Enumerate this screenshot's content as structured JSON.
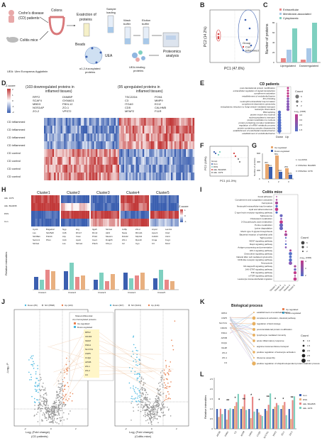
{
  "labels": [
    "A",
    "B",
    "C",
    "D",
    "E",
    "F",
    "G",
    "H",
    "I",
    "J",
    "K",
    "L"
  ],
  "panelA": {
    "crohn": "Crohn's disease",
    "crohn2": "(CD) patients",
    "colitis": "Colitis mice",
    "colons": "Colons",
    "extraction": "Exatrction of",
    "extraction2": "proteins",
    "sample": "Sample",
    "sample2": "loading",
    "wash": "Wash",
    "wash2": "buffer",
    "elution": "Elution",
    "elution2": "buffer",
    "beads": "Beads",
    "uea": "UEA",
    "fuc": "α1,2-fucosylated",
    "fuc2": "proteins",
    "ueabind": "UEA-binding",
    "ueabind2": "proteins",
    "proteomics": "Proteomics",
    "proteomics2": "analysis",
    "ueadef": "UEA: Ulex Europaeus Agglutinin"
  },
  "panelB": {
    "xlabel": "PC1 (47.6%)",
    "ylabel": "PC2 (14.2%)",
    "legend_title": "Group",
    "legend": [
      "Con",
      "Inflammed"
    ],
    "colors": [
      "#d43d3d",
      "#3b5fb0"
    ]
  },
  "panelC": {
    "ylabel": "Number of proteins",
    "legend": [
      "Extracellular",
      "Membrane-associated",
      "Cytoplasmic"
    ],
    "colors": [
      "#e88888",
      "#a8c8e8",
      "#7fd0c0"
    ],
    "categories": [
      "Upregulated",
      "Downregulated"
    ],
    "ticks": [
      "0",
      "20",
      "40",
      "60",
      "80"
    ]
  },
  "panelD": {
    "zscore": "Z-score",
    "zticks": [
      "2",
      "1",
      "0",
      "-1",
      "-2"
    ],
    "left_head": "(103 downregulated proteins in",
    "left_head2": "inflamed tissues)",
    "right_head": "(95 upregulated proteins in",
    "right_head2": "inflamed tissues)",
    "left_genes": [
      "RPF2",
      "DNMBP",
      "SCAF4",
      "OXNAD1",
      "MBD3",
      "FBXL12",
      "NOS1AP",
      "ZO-1",
      "ZO-2",
      "VPS72"
    ],
    "right_genes": [
      "TSC22D4",
      "PON1",
      "C3",
      "MMP9",
      "ITGA9",
      "ECI2",
      "CD5",
      "CALHM5",
      "MFAP2",
      "F11R"
    ],
    "rows": [
      "CD inflammed",
      "CD inflammed",
      "CD inflammed",
      "CD inflammed",
      "CD control",
      "CD control",
      "CD control",
      "CD control"
    ]
  },
  "panelE": {
    "title": "CD patients",
    "terms": [
      "post-translational protein modification",
      "extracellular regulation of signal transduction",
      "complement activation",
      "establishment of endothelial barrier",
      "ZO-2 binding",
      "neutrophil extracellular trap formation",
      "complement-dependent cytotoxicity",
      "endoplasmic reticulum to Golgi vesicle-mediated transport",
      "leukocyte chemotaxis",
      "RNA splicing",
      "protein import into nucleus",
      "nucleocytoplasmic transport",
      "protein localization to nucleus",
      "protein-containing complex localization",
      "regulation of mRNA metabolic process",
      "protein-containing complex disassembly",
      "establishment of endothelial intestinal barrier",
      "establishment of endothelial barrier"
    ],
    "xcats": [
      "Down",
      "Up"
    ],
    "count_title": "Count",
    "counts": [
      "6",
      "4",
      "2"
    ],
    "fdr_title": "-Log₁₀ (FDR)",
    "fdr": [
      "4.0",
      "3.0",
      "2.0",
      "1.5"
    ]
  },
  "panelF": {
    "xlabel": "PC1 (41.3%)",
    "ylabel": "PC2 (18%)",
    "legend_title": "Group",
    "legend": [
      "Con",
      "DSS",
      "Akk. BAA835",
      "Akk. 1079"
    ],
    "colors": [
      "#3b5fb0",
      "#7fd0c0",
      "#d43d3d",
      "#888888"
    ]
  },
  "panelG": {
    "ylabel": "Number of proteins",
    "legend": [
      "Up regulated",
      "Down-regulated"
    ],
    "values": [
      "357",
      "551",
      "253"
    ],
    "values2": [
      "291",
      "162",
      "103"
    ],
    "ticks": [
      "0",
      "200",
      "400",
      "600"
    ],
    "cats": [
      "1",
      "2",
      "3"
    ],
    "notes": [
      "1: Con/DSS",
      "2: DSS/Akk. BAA835",
      "3: DSS/Akk. 1079"
    ]
  },
  "panelH": {
    "clusters": [
      "Cluster1",
      "Cluster2",
      "Cluster3",
      "Cluster4",
      "Cluster5"
    ],
    "rows": [
      "Akk. 1079",
      "Akk. BAA835",
      "DSS",
      "Con"
    ],
    "zscore": "Z-score",
    "zticks": [
      "1",
      "0",
      "-1"
    ],
    "ylabel": "Relative intensities",
    "genes": [
      [
        "Cyct1",
        "B4galnt2",
        "Lss",
        "Slc25a5",
        "Slc38a1",
        "Pdcd4",
        "Serinc1",
        "Pbxn",
        "Slc3a1"
      ],
      [
        "Ngp",
        "Hrg",
        "Cd6",
        "Dhrs7",
        "Lbp",
        "Vcan",
        "Cd4",
        "Apob",
        "Lss",
        "Slc1a1"
      ],
      [
        "Itga5",
        "Slc4a1",
        "Rrm2",
        "Akt3",
        "Ptrk4",
        "Mustn1",
        "Cav1",
        "Dnajb5",
        "Ptkcb",
        "Khnyn"
      ],
      [
        "Cd5p",
        "ZO-2",
        "Naca",
        "Rbm41",
        "Ddx42",
        "Mrpl44",
        "ZO-1",
        "Rps10",
        "C2",
        "Cgn"
      ],
      [
        "Arpc2",
        "Lamb1",
        "Apoc1",
        "Ctsd",
        "Cd163",
        "Clic4",
        "C1qa",
        "Kng1",
        "C3",
        "Mxr2"
      ]
    ]
  },
  "panelI": {
    "title": "Colitis mice",
    "terms": [
      "Focal adhesion",
      "Complement and coagulation cascades",
      "Ferroptosis",
      "Neutrophil extracellular trap formation",
      "Lipid and atherosclerosis",
      "C-type lectin receptor signaling pathway",
      "Spliceosome",
      "Cholesterol metabolism",
      "2-Oxocarboxylic acid metabolism",
      "Purine metabolism",
      "Lysine degradation",
      "Mucin type O-glycan biosynthesis",
      "Bacterial invasion of epithelial cells",
      "Tight junction",
      "VEGF signaling pathway",
      "Rap1 signaling pathway",
      "Antigen processing and presentation",
      "HIF-1 signaling pathway",
      "Chemokine signaling pathway",
      "Natural killer cell mediated cytotoxicity",
      "NOD-like receptor signaling pathway",
      "Necroptosis",
      "NF-kappa B signaling pathway",
      "JAK-STAT signaling pathway",
      "TNF signaling pathway",
      "mTOR signaling pathway",
      "Leukocyte transendothelial migration"
    ],
    "xcats": [
      "Cluster 1",
      "Cluster 2",
      "Cluster 3",
      "Cluster 4",
      "Cluster 5"
    ],
    "count_title": "Count",
    "counts": [
      "6",
      "4",
      "2"
    ],
    "fdr_title": "-Log₁₀ (FDR)",
    "fdr": [
      "4",
      "3",
      "2"
    ]
  },
  "panelJ": {
    "legend_left": [
      "Down (65)",
      "NO (5598)",
      "Up (103)"
    ],
    "legend_right": [
      "Down (397)",
      "NO (5213)",
      "Up (419)"
    ],
    "shared_title": "Shared differential",
    "shared_title2": "α1,2-fucosylated proteins",
    "shared_legend": [
      "Up-regulated",
      "Down-regulated"
    ],
    "shared": [
      "RPF2",
      "CD163",
      "IGHM",
      "KNG1",
      "SLC7A1",
      "USP5",
      "C1QA",
      "APOB",
      "ZO-1",
      "ZO-2",
      "C3"
    ],
    "xlabel_left": "Log₂ (Fold change)",
    "xlabel_left2": "(CD patients)",
    "xlabel_right": "Log₂ (Fold change)",
    "xlabel_right2": "(Colitis mice)",
    "ylabel": "-Log₁₀ P",
    "xticks_left": [
      "-2",
      "0",
      "2"
    ],
    "xticks_right": [
      "-2",
      "0",
      "2"
    ]
  },
  "panelK": {
    "title": "Biological process",
    "legend": [
      "Up-regulated",
      "Down-regulated"
    ],
    "genes": [
      "RPF2",
      "USP5",
      "SLC7A1",
      "CD163",
      "KNG1",
      "APOB",
      "C1QA",
      "IGHM",
      "ZO-2",
      "ZO-1",
      "C3"
    ],
    "terms": [
      "establishment of endothelial barrier",
      "complement activation, classical pathway",
      "regulation of lipid storage",
      "post-translational protein modification",
      "lymphocyte mediated immunity",
      "acute inflammatory response",
      "arginine transmembrane transport",
      "positive regulation of leukocyte activation",
      "ribosome assembly",
      "positive regulation of ubiquitin-dependent protein catabolic process"
    ],
    "count_title": "Count",
    "counts": [
      "1.0",
      "1.5",
      "2.0",
      "2.5",
      "3.0"
    ]
  },
  "panelL": {
    "ylabel": "Relative intensities",
    "legend": [
      "Con",
      "DSS",
      "Akk. BAA835",
      "Akk. 1079"
    ],
    "colors": [
      "#3b5fb0",
      "#e8b080",
      "#e88888",
      "#7fd0c0"
    ],
    "cats": [
      "APOB",
      "KNG1",
      "C3",
      "IGHM",
      "USP5",
      "C1QA",
      "SLC7A1",
      "RPF2",
      "ZO-1",
      "ZO-2"
    ],
    "ticks": [
      "0",
      "0.5",
      "1.0",
      "1.5",
      "2.0",
      "2.5"
    ],
    "stars": [
      "*",
      "**",
      "*",
      "**",
      "*",
      "*",
      "**",
      "*",
      "*",
      "**"
    ]
  }
}
